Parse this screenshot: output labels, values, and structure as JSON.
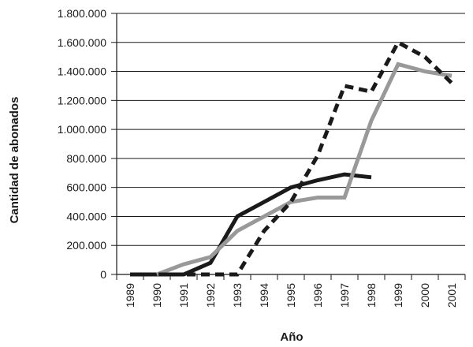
{
  "chart_data": {
    "type": "line",
    "title": "",
    "xlabel": "Año",
    "ylabel": "Cantidad de abonados",
    "categories": [
      "1989",
      "1990",
      "1991",
      "1992",
      "1993",
      "1994",
      "1995",
      "1996",
      "1997",
      "1998",
      "1999",
      "2000",
      "2001"
    ],
    "y_ticks": [
      "0",
      "200.000",
      "400.000",
      "600.000",
      "800.000",
      "1.000.000",
      "1.200.000",
      "1.400.000",
      "1.600.000",
      "1.800.000"
    ],
    "ylim": [
      0,
      1800000
    ],
    "grid": "horizontal",
    "legend": "none",
    "series": [
      {
        "color": "#1a1a1a",
        "style": "solid",
        "values": [
          0,
          0,
          0,
          80000,
          400000,
          500000,
          600000,
          650000,
          690000,
          670000,
          null,
          null,
          null
        ]
      },
      {
        "color": "#999999",
        "style": "solid",
        "values": [
          null,
          0,
          70000,
          120000,
          300000,
          400000,
          500000,
          530000,
          530000,
          1060000,
          1450000,
          1400000,
          1370000
        ]
      },
      {
        "color": "#1a1a1a",
        "style": "dashed",
        "values": [
          0,
          0,
          0,
          0,
          0,
          300000,
          500000,
          820000,
          1300000,
          1260000,
          1600000,
          1500000,
          1320000
        ]
      }
    ]
  }
}
